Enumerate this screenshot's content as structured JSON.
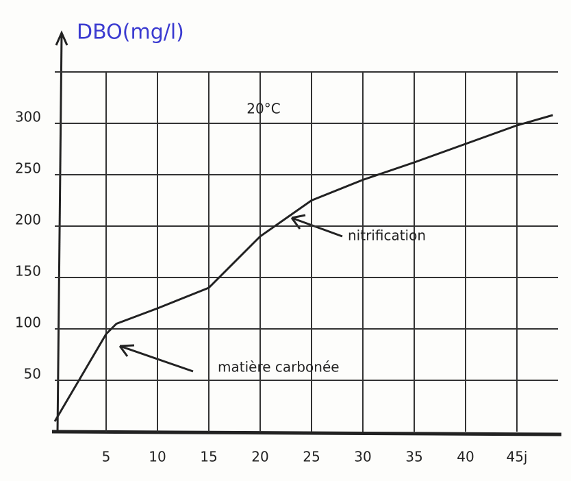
{
  "chart_data": {
    "type": "line",
    "y_label": "DBO(mg/l)",
    "annotations": [
      "20°C",
      "nitrification",
      "matière carbonée"
    ],
    "x": [
      0,
      5,
      6,
      10,
      15,
      20,
      25,
      30,
      35,
      40,
      45,
      48.5
    ],
    "values": [
      10,
      95,
      105,
      120,
      140,
      190,
      225,
      245,
      262,
      280,
      298,
      308
    ],
    "color": "#222222",
    "xlim": [
      0,
      49
    ],
    "ylim": [
      0,
      350
    ],
    "xticks": [
      5,
      10,
      15,
      20,
      25,
      30,
      35,
      40,
      {
        "value": 45,
        "label": "45j"
      }
    ],
    "yticks": [
      50,
      100,
      150,
      200,
      250,
      300
    ],
    "grid": true
  }
}
